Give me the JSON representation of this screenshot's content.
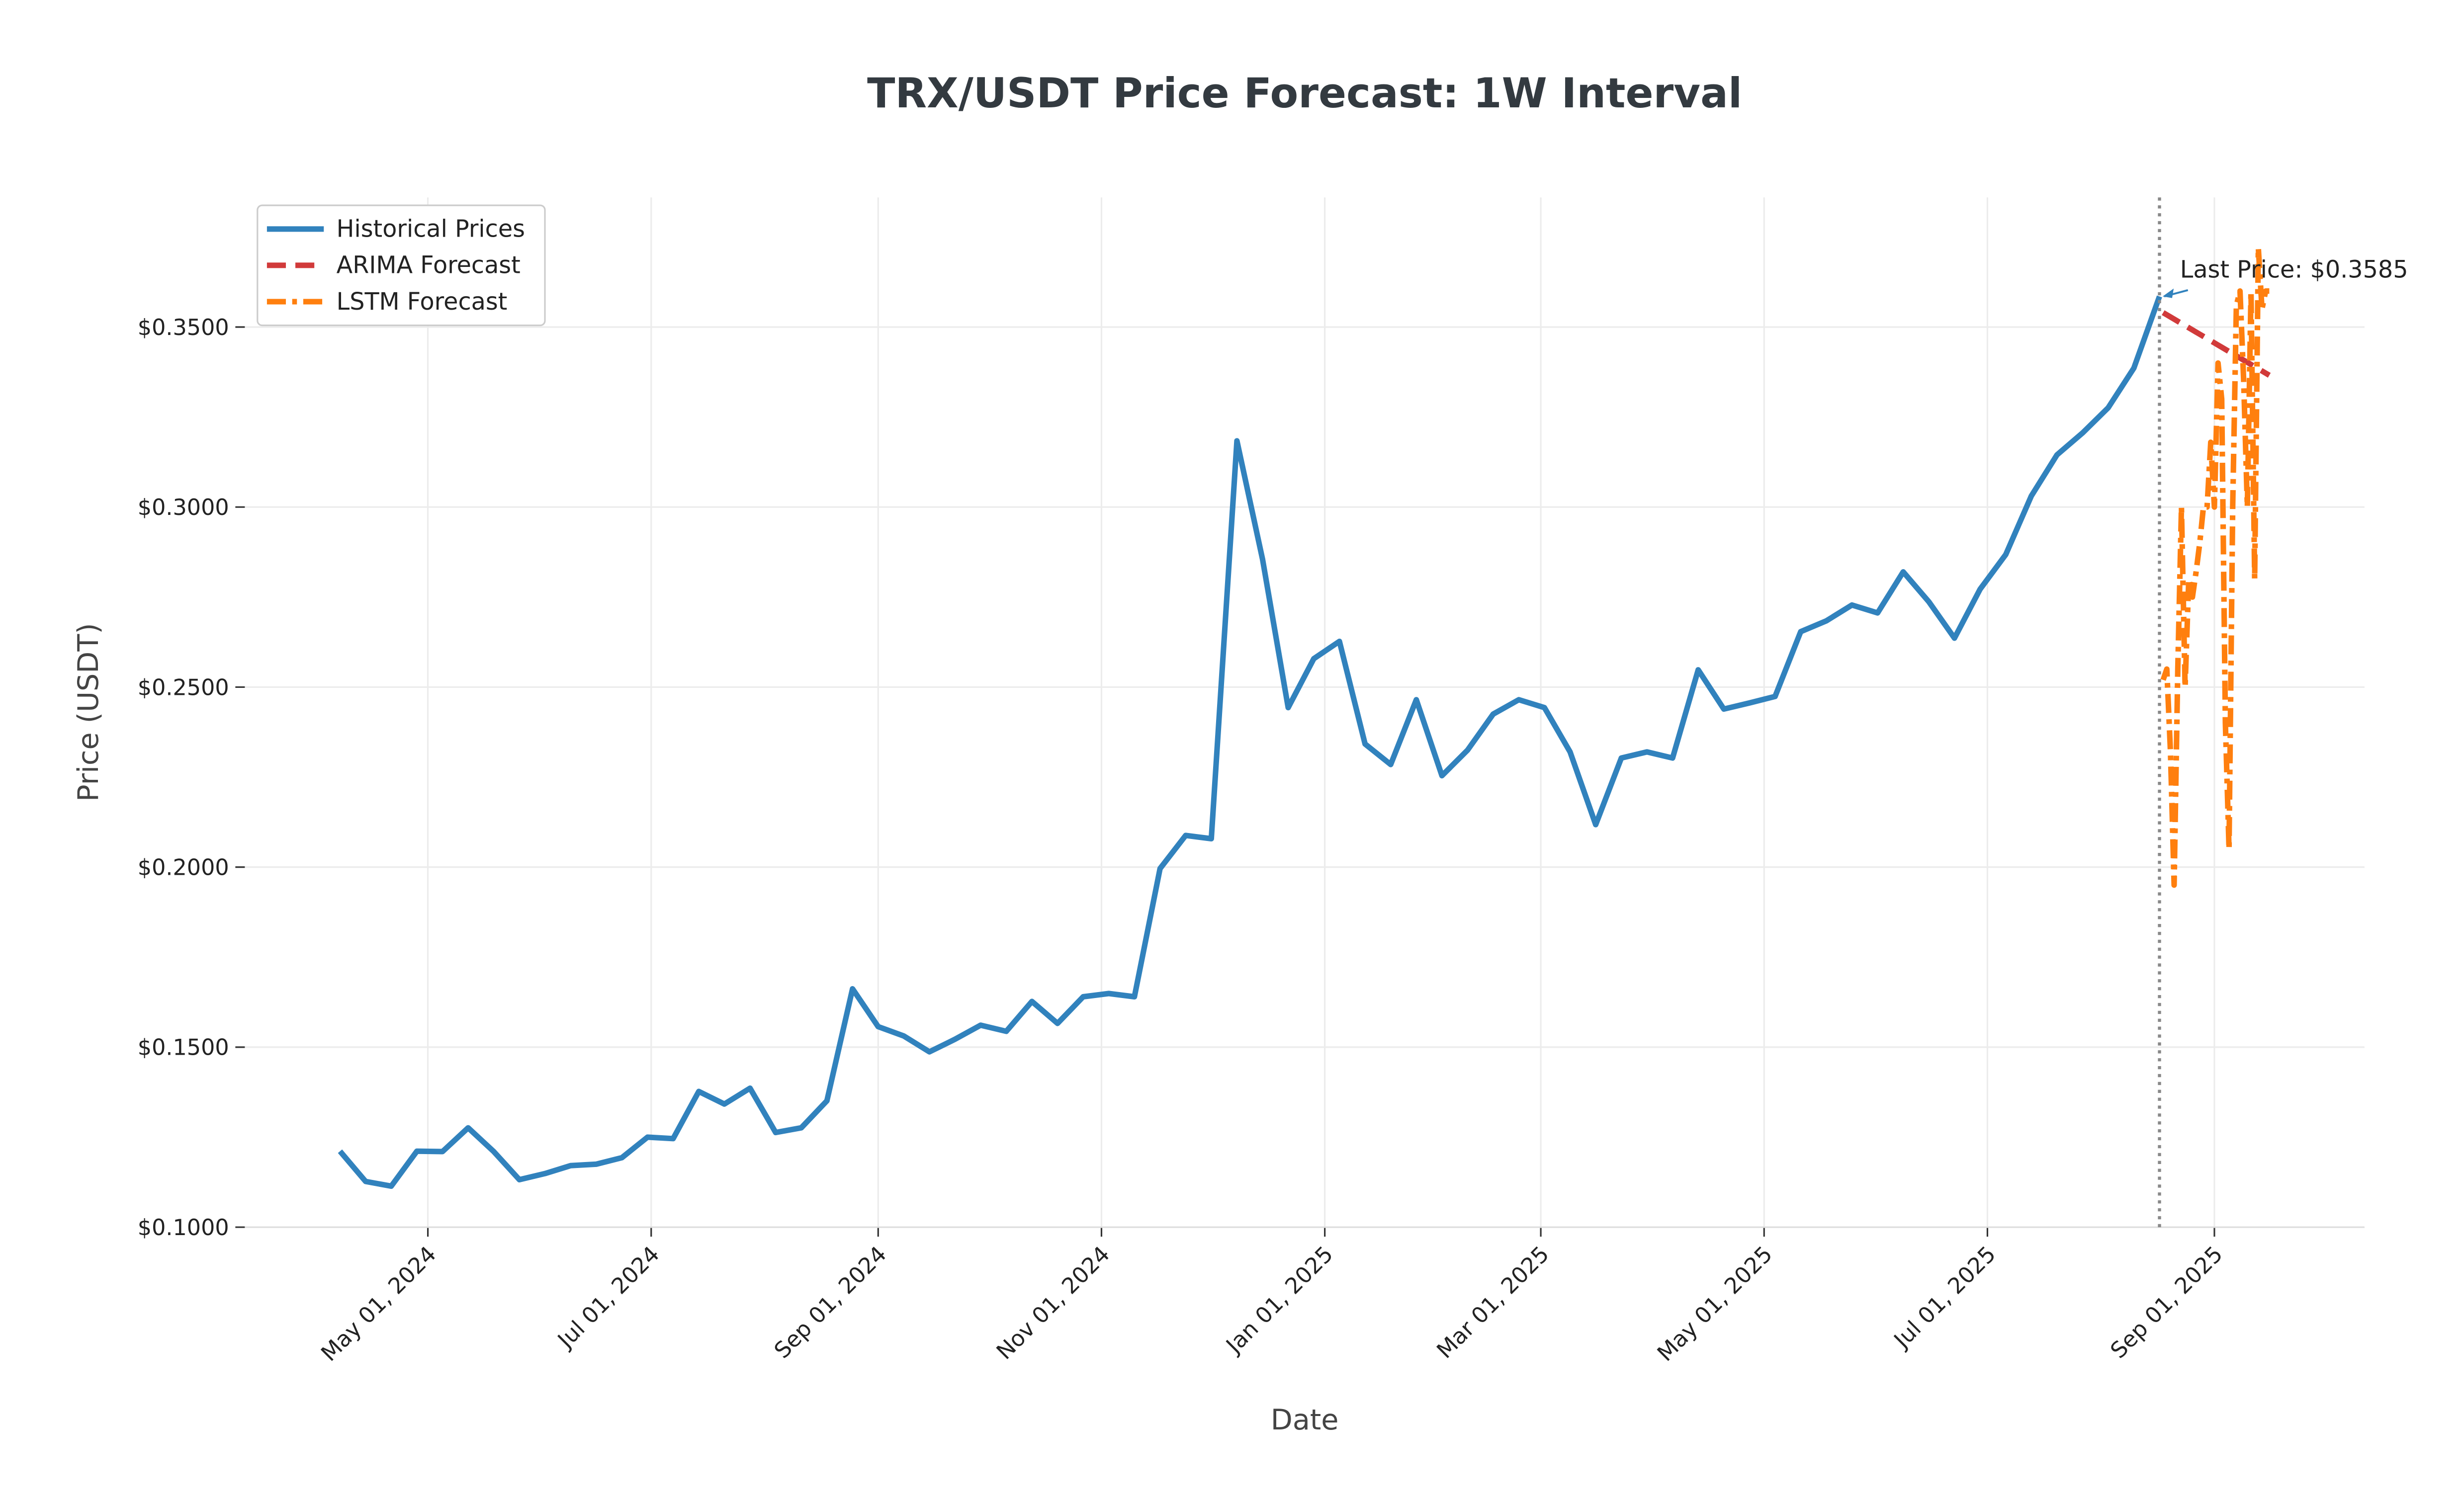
{
  "chart_data": {
    "type": "line",
    "title": "TRX/USDT Price Forecast: 1W Interval",
    "x_label": "Date",
    "y_label": "Price (USDT)",
    "grid": true,
    "legend_position": "upper left",
    "annotation": "Last Price: $0.3585",
    "xlim": [
      "2024-03-12",
      "2025-10-12"
    ],
    "ylim": [
      0.1,
      0.386
    ],
    "xticks": [
      {
        "value": "2024-05-01",
        "label": "May 01, 2024"
      },
      {
        "value": "2024-07-01",
        "label": "Jul 01, 2024"
      },
      {
        "value": "2024-09-01",
        "label": "Sep 01, 2024"
      },
      {
        "value": "2024-11-01",
        "label": "Nov 01, 2024"
      },
      {
        "value": "2025-01-01",
        "label": "Jan 01, 2025"
      },
      {
        "value": "2025-03-01",
        "label": "Mar 01, 2025"
      },
      {
        "value": "2025-05-01",
        "label": "May 01, 2025"
      },
      {
        "value": "2025-07-01",
        "label": "Jul 01, 2025"
      },
      {
        "value": "2025-09-01",
        "label": "Sep 01, 2025"
      }
    ],
    "yticks": [
      {
        "value": 0.1,
        "label": "$0.1000"
      },
      {
        "value": 0.15,
        "label": "$0.1500"
      },
      {
        "value": 0.2,
        "label": "$0.2000"
      },
      {
        "value": 0.25,
        "label": "$0.2500"
      },
      {
        "value": 0.3,
        "label": "$0.3000"
      },
      {
        "value": 0.35,
        "label": "$0.3500"
      }
    ],
    "series": [
      {
        "name": "Historical Prices",
        "color": "#3182bd",
        "style": "solid",
        "x": [
          "2024-04-07",
          "2024-04-14",
          "2024-04-21",
          "2024-04-28",
          "2024-05-05",
          "2024-05-12",
          "2024-05-19",
          "2024-05-26",
          "2024-06-02",
          "2024-06-09",
          "2024-06-16",
          "2024-06-23",
          "2024-06-30",
          "2024-07-07",
          "2024-07-14",
          "2024-07-21",
          "2024-07-28",
          "2024-08-04",
          "2024-08-11",
          "2024-08-18",
          "2024-08-25",
          "2024-09-01",
          "2024-09-08",
          "2024-09-15",
          "2024-09-22",
          "2024-09-29",
          "2024-10-06",
          "2024-10-13",
          "2024-10-20",
          "2024-10-27",
          "2024-11-03",
          "2024-11-10",
          "2024-11-17",
          "2024-11-24",
          "2024-12-01",
          "2024-12-08",
          "2024-12-15",
          "2024-12-22",
          "2024-12-29",
          "2025-01-05",
          "2025-01-12",
          "2025-01-19",
          "2025-01-26",
          "2025-02-02",
          "2025-02-09",
          "2025-02-16",
          "2025-02-23",
          "2025-03-02",
          "2025-03-09",
          "2025-03-16",
          "2025-03-23",
          "2025-03-30",
          "2025-04-06",
          "2025-04-13",
          "2025-04-20",
          "2025-04-27",
          "2025-05-04",
          "2025-05-11",
          "2025-05-18",
          "2025-05-25",
          "2025-06-01",
          "2025-06-08",
          "2025-06-15",
          "2025-06-22",
          "2025-06-29",
          "2025-07-06",
          "2025-07-13",
          "2025-07-20",
          "2025-07-27",
          "2025-08-03",
          "2025-08-10",
          "2025-08-17"
        ],
        "values": [
          0.1211,
          0.1127,
          0.1114,
          0.1211,
          0.121,
          0.1276,
          0.121,
          0.1132,
          0.1149,
          0.1171,
          0.1175,
          0.1193,
          0.125,
          0.1246,
          0.1377,
          0.1342,
          0.1386,
          0.1263,
          0.1276,
          0.1351,
          0.1662,
          0.1557,
          0.1531,
          0.1487,
          0.1522,
          0.1561,
          0.1544,
          0.1627,
          0.1566,
          0.164,
          0.1649,
          0.164,
          0.1996,
          0.2088,
          0.2079,
          0.3184,
          0.2855,
          0.2443,
          0.2579,
          0.2627,
          0.2342,
          0.2285,
          0.2465,
          0.2254,
          0.2325,
          0.2425,
          0.2465,
          0.2443,
          0.232,
          0.2118,
          0.2303,
          0.232,
          0.2303,
          0.2548,
          0.2439,
          0.2456,
          0.2474,
          0.2654,
          0.2684,
          0.2728,
          0.2706,
          0.282,
          0.2737,
          0.2636,
          0.2772,
          0.2868,
          0.3031,
          0.3145,
          0.3206,
          0.3276,
          0.3386,
          0.3585
        ]
      },
      {
        "name": "ARIMA Forecast",
        "color": "#d13a3a",
        "style": "dashed",
        "x": [
          "2025-08-18",
          "2025-08-19",
          "2025-08-20",
          "2025-08-21",
          "2025-08-22",
          "2025-08-23",
          "2025-08-24",
          "2025-08-25",
          "2025-08-26",
          "2025-08-27",
          "2025-08-28",
          "2025-08-29",
          "2025-08-30",
          "2025-08-31",
          "2025-09-01",
          "2025-09-02",
          "2025-09-03",
          "2025-09-04",
          "2025-09-05",
          "2025-09-06",
          "2025-09-07",
          "2025-09-08",
          "2025-09-09",
          "2025-09-10",
          "2025-09-11",
          "2025-09-12",
          "2025-09-13",
          "2025-09-14",
          "2025-09-15",
          "2025-09-16"
        ],
        "values": [
          0.354,
          0.3534,
          0.3528,
          0.3522,
          0.3516,
          0.351,
          0.3504,
          0.3498,
          0.3492,
          0.3486,
          0.348,
          0.3474,
          0.3468,
          0.3462,
          0.3456,
          0.345,
          0.3444,
          0.3438,
          0.3432,
          0.3426,
          0.342,
          0.3414,
          0.3408,
          0.3402,
          0.3396,
          0.339,
          0.3384,
          0.3378,
          0.3372,
          0.3366
        ]
      },
      {
        "name": "LSTM Forecast",
        "color": "#ff7f0e",
        "style": "dashdot",
        "x": [
          "2025-08-18",
          "2025-08-19",
          "2025-08-20",
          "2025-08-21",
          "2025-08-22",
          "2025-08-23",
          "2025-08-24",
          "2025-08-25",
          "2025-08-26",
          "2025-08-27",
          "2025-08-28",
          "2025-08-29",
          "2025-08-30",
          "2025-08-31",
          "2025-09-01",
          "2025-09-02",
          "2025-09-03",
          "2025-09-04",
          "2025-09-05",
          "2025-09-06",
          "2025-09-07",
          "2025-09-08",
          "2025-09-09",
          "2025-09-10",
          "2025-09-11",
          "2025-09-12",
          "2025-09-13",
          "2025-09-14",
          "2025-09-15",
          "2025-09-16"
        ],
        "values": [
          0.252,
          0.255,
          0.232,
          0.195,
          0.255,
          0.3,
          0.25,
          0.28,
          0.275,
          0.282,
          0.29,
          0.3,
          0.3,
          0.318,
          0.3,
          0.34,
          0.33,
          0.24,
          0.205,
          0.3,
          0.356,
          0.36,
          0.335,
          0.3,
          0.36,
          0.28,
          0.372,
          0.355,
          0.36,
          0.36
        ]
      }
    ]
  }
}
